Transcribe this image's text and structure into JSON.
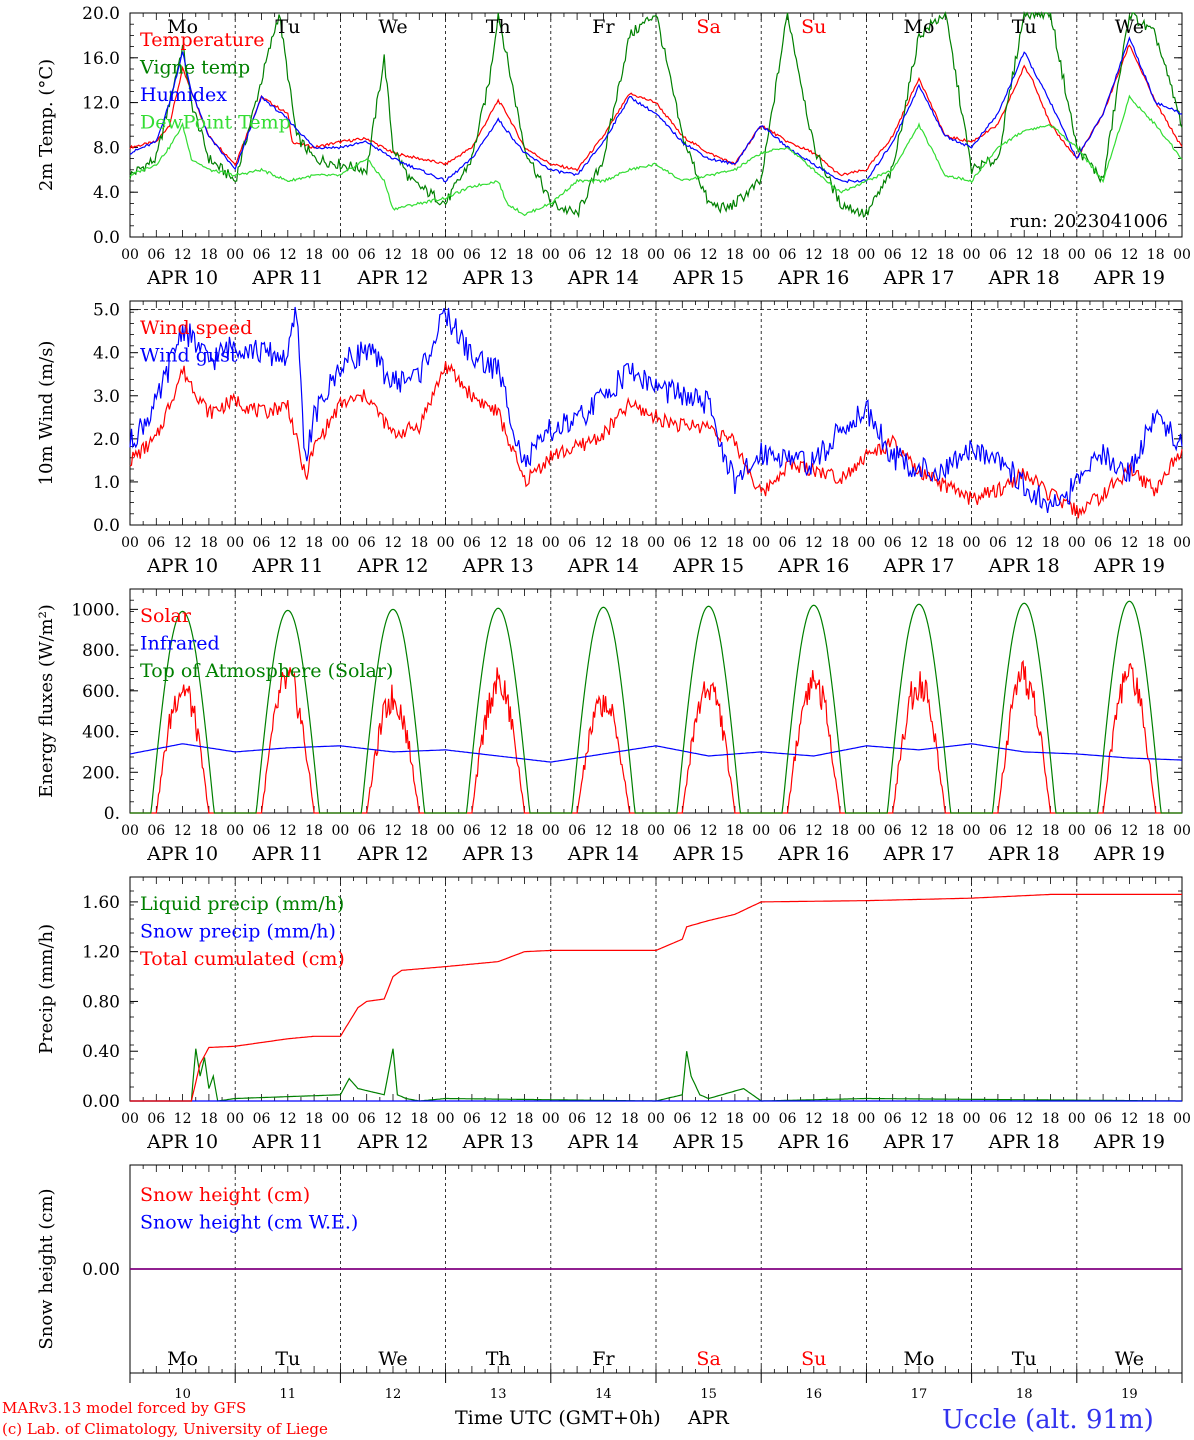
{
  "run_label": "run: 2023041006",
  "footer": {
    "model_line": "MARv3.13 model forced by GFS",
    "credit_line": "(c) Lab. of Climatology, University of Liege",
    "axis_title": "Time UTC (GMT+0h)",
    "month": "APR",
    "station": "Uccle (alt. 91m)"
  },
  "days": [
    {
      "dow": "Mo",
      "date": "APR 10",
      "num": "10",
      "weekend": false
    },
    {
      "dow": "Tu",
      "date": "APR 11",
      "num": "11",
      "weekend": false
    },
    {
      "dow": "We",
      "date": "APR 12",
      "num": "12",
      "weekend": false
    },
    {
      "dow": "Th",
      "date": "APR 13",
      "num": "13",
      "weekend": false
    },
    {
      "dow": "Fr",
      "date": "APR 14",
      "num": "14",
      "weekend": false
    },
    {
      "dow": "Sa",
      "date": "APR 15",
      "num": "15",
      "weekend": true
    },
    {
      "dow": "Su",
      "date": "APR 16",
      "num": "16",
      "weekend": true
    },
    {
      "dow": "Mo",
      "date": "APR 17",
      "num": "17",
      "weekend": false
    },
    {
      "dow": "Tu",
      "date": "APR 18",
      "num": "18",
      "weekend": false
    },
    {
      "dow": "We",
      "date": "APR 19",
      "num": "19",
      "weekend": false
    }
  ],
  "hour_ticks": [
    "00",
    "06",
    "12",
    "18"
  ],
  "colors": {
    "red": "#ff0000",
    "green": "#008000",
    "blue": "#0000ff",
    "lightgreen": "#33dd33",
    "purple": "#800080"
  },
  "chart_data": [
    {
      "id": "temperature",
      "type": "line",
      "ylabel": "2m Temp. (°C)",
      "ylim": [
        0,
        20
      ],
      "yticks": [
        "0.0",
        "4.0",
        "8.0",
        "12.0",
        "16.0",
        "20.0"
      ],
      "x_unit": "hours since 2023-04-10 00 UTC",
      "series": [
        {
          "name": "Temperature",
          "color": "#ff0000",
          "x": [
            0,
            6,
            9,
            12,
            14,
            18,
            24,
            30,
            36,
            37,
            42,
            48,
            54,
            60,
            66,
            72,
            78,
            84,
            86,
            90,
            96,
            102,
            108,
            114,
            120,
            126,
            132,
            138,
            144,
            150,
            156,
            162,
            168,
            174,
            180,
            186,
            192,
            198,
            204,
            206,
            210,
            216,
            222,
            228,
            234,
            240
          ],
          "y": [
            8.0,
            8.5,
            10,
            15.0,
            13,
            9,
            6.5,
            12.5,
            11,
            8.5,
            8,
            8.5,
            8.8,
            7.5,
            7,
            6.5,
            8,
            12.2,
            11,
            8,
            6.5,
            6,
            9,
            12.8,
            12,
            9,
            7.5,
            6.5,
            10,
            8.5,
            7.5,
            5.5,
            6,
            9,
            14.2,
            9,
            8.5,
            10,
            15.2,
            14,
            10,
            7,
            11,
            17.2,
            12,
            8
          ]
        },
        {
          "name": "Vigne temp",
          "color": "#008000",
          "x": [
            0,
            6,
            9,
            12,
            14,
            18,
            24,
            30,
            34,
            38,
            42,
            48,
            54,
            58,
            60,
            64,
            66,
            72,
            78,
            82,
            84,
            90,
            96,
            102,
            108,
            114,
            120,
            126,
            132,
            136,
            138,
            144,
            150,
            156,
            162,
            168,
            174,
            180,
            186,
            192,
            198,
            204,
            210,
            216,
            222,
            228,
            234,
            240
          ],
          "y": [
            5.5,
            7,
            12,
            17,
            12,
            7,
            5,
            14,
            20,
            9,
            7,
            6.5,
            6,
            16,
            8,
            5,
            4.5,
            3,
            7,
            14,
            20,
            8,
            3,
            2,
            7,
            18,
            20,
            9,
            3,
            2.5,
            3,
            5,
            20,
            8,
            3,
            2,
            6,
            18,
            20,
            6,
            7,
            20,
            20,
            8,
            5,
            20,
            18,
            10
          ]
        },
        {
          "name": "Humidex",
          "color": "#0000ff",
          "x": [
            0,
            6,
            9,
            12,
            14,
            18,
            24,
            30,
            36,
            42,
            48,
            54,
            60,
            66,
            72,
            78,
            84,
            90,
            96,
            102,
            108,
            114,
            120,
            126,
            132,
            138,
            144,
            150,
            156,
            162,
            168,
            174,
            180,
            186,
            192,
            198,
            204,
            210,
            216,
            222,
            228,
            234,
            240
          ],
          "y": [
            7.5,
            8.5,
            12,
            16.5,
            13,
            9,
            6,
            12.5,
            10.5,
            8,
            8,
            8.5,
            7,
            6,
            5,
            7,
            10.5,
            7.5,
            6,
            5.5,
            8.5,
            12.5,
            11,
            8.5,
            7,
            6.5,
            10,
            8,
            6.5,
            5,
            5,
            8.5,
            13.5,
            9,
            8,
            11,
            16.5,
            12,
            7,
            11,
            17.8,
            12,
            11
          ]
        },
        {
          "name": "DewPoint Temp",
          "color": "#33dd33",
          "x": [
            0,
            6,
            9,
            12,
            14,
            18,
            24,
            30,
            36,
            42,
            48,
            54,
            58,
            60,
            66,
            72,
            78,
            84,
            86,
            90,
            96,
            102,
            108,
            114,
            120,
            126,
            132,
            138,
            144,
            150,
            156,
            162,
            168,
            174,
            180,
            186,
            192,
            198,
            204,
            210,
            216,
            222,
            228,
            234,
            240
          ],
          "y": [
            5.5,
            6.5,
            8,
            10,
            7,
            6,
            5.5,
            6,
            5,
            5.5,
            5.5,
            7,
            5,
            2.5,
            3,
            3.5,
            4.5,
            5,
            3,
            2,
            3,
            5,
            5,
            6,
            6.5,
            5,
            5.5,
            6,
            7.5,
            8,
            6,
            4,
            5,
            6,
            10,
            5.5,
            5,
            8,
            9.5,
            10,
            8,
            5,
            12.5,
            10,
            7
          ]
        }
      ]
    },
    {
      "id": "wind",
      "type": "line",
      "ylabel": "10m Wind (m/s)",
      "ylim": [
        0,
        5.2
      ],
      "yticks": [
        "0.0",
        "1.0",
        "2.0",
        "3.0",
        "4.0",
        "5.0"
      ],
      "series": [
        {
          "name": "Wind speed",
          "color": "#ff0000",
          "x": [
            0,
            6,
            12,
            18,
            24,
            30,
            36,
            40,
            42,
            48,
            54,
            60,
            66,
            72,
            78,
            84,
            90,
            96,
            102,
            108,
            114,
            120,
            126,
            132,
            138,
            144,
            150,
            156,
            162,
            168,
            174,
            180,
            186,
            192,
            198,
            204,
            210,
            216,
            222,
            228,
            234,
            240
          ],
          "y": [
            1.5,
            2,
            3.6,
            2.6,
            2.9,
            2.6,
            2.8,
            1.1,
            1.8,
            2.8,
            3,
            2.1,
            2.3,
            3.7,
            3,
            2.6,
            1,
            1.6,
            1.8,
            2.1,
            2.8,
            2.5,
            2.3,
            2.3,
            1.9,
            0.7,
            1.4,
            1.3,
            1.1,
            1.6,
            1.9,
            1.2,
            0.9,
            0.6,
            0.8,
            1.2,
            0.7,
            0.3,
            0.7,
            1.3,
            0.8,
            1.8
          ]
        },
        {
          "name": "Wind gust",
          "color": "#0000ff",
          "x": [
            0,
            6,
            12,
            18,
            24,
            30,
            36,
            38,
            40,
            42,
            48,
            54,
            60,
            66,
            72,
            78,
            84,
            90,
            96,
            102,
            108,
            114,
            120,
            126,
            132,
            138,
            144,
            150,
            156,
            162,
            168,
            174,
            180,
            186,
            192,
            198,
            204,
            210,
            216,
            222,
            228,
            234,
            240
          ],
          "y": [
            1.9,
            2.8,
            4.6,
            3.8,
            4.2,
            4,
            3.9,
            5,
            1.5,
            2.5,
            3.7,
            4.1,
            3.3,
            3.5,
            4.9,
            3.9,
            3.6,
            1.4,
            2.2,
            2.4,
            3,
            3.6,
            3.2,
            3,
            2.8,
            0.9,
            1.7,
            1.6,
            1.4,
            2.2,
            2.7,
            1.6,
            1.3,
            1.2,
            1.8,
            1.6,
            0.9,
            0.4,
            0.9,
            1.7,
            1.2,
            2.6,
            1.8
          ]
        }
      ]
    },
    {
      "id": "energy",
      "type": "line",
      "ylabel": "Energy fluxes (W/m²)",
      "ylim": [
        0,
        1100
      ],
      "yticks": [
        "0.",
        "200.",
        "400.",
        "600.",
        "800.",
        "1000."
      ],
      "series": [
        {
          "name": "Solar",
          "color": "#ff0000",
          "daily_peak": [
            700,
            740,
            640,
            720,
            620,
            710,
            740,
            730,
            750,
            780
          ],
          "x_unit": "day index 0-9"
        },
        {
          "name": "Infrared",
          "color": "#0000ff",
          "x": [
            0,
            12,
            24,
            36,
            48,
            60,
            72,
            84,
            96,
            108,
            120,
            132,
            144,
            156,
            168,
            180,
            192,
            204,
            216,
            228,
            240
          ],
          "y": [
            290,
            340,
            300,
            320,
            330,
            300,
            310,
            280,
            250,
            290,
            330,
            280,
            300,
            280,
            330,
            310,
            340,
            300,
            290,
            270,
            260
          ]
        },
        {
          "name": "Top of Atmosphere (Solar)",
          "color": "#008000",
          "daily_peak": [
            990,
            995,
            1000,
            1005,
            1010,
            1015,
            1020,
            1025,
            1030,
            1040
          ],
          "x_unit": "day index 0-9"
        }
      ]
    },
    {
      "id": "precip",
      "type": "line",
      "ylabel": "Precip (mm/h)",
      "ylim": [
        0,
        1.8
      ],
      "yticks": [
        "0.00",
        "0.40",
        "0.80",
        "1.20",
        "1.60"
      ],
      "series": [
        {
          "name": "Liquid precip (mm/h)",
          "color": "#008000",
          "x": [
            0,
            14,
            15,
            16,
            17,
            18,
            19,
            20,
            24,
            48,
            50,
            52,
            58,
            60,
            61,
            63,
            66,
            72,
            120,
            126,
            127,
            128,
            130,
            132,
            140,
            144,
            168,
            240
          ],
          "y": [
            0,
            0,
            0.42,
            0.2,
            0.35,
            0.1,
            0.2,
            0,
            0.02,
            0.05,
            0.18,
            0.1,
            0.05,
            0.42,
            0.05,
            0.02,
            0,
            0.02,
            0,
            0.05,
            0.4,
            0.2,
            0.05,
            0.02,
            0.1,
            0,
            0.02,
            0
          ]
        },
        {
          "name": "Snow precip (mm/h)",
          "color": "#0000ff",
          "x": [
            0,
            240
          ],
          "y": [
            0,
            0
          ]
        },
        {
          "name": "Total cumulated (cm)",
          "color": "#ff0000",
          "x": [
            0,
            14,
            16,
            18,
            24,
            36,
            42,
            48,
            52,
            54,
            58,
            60,
            62,
            72,
            78,
            84,
            90,
            96,
            108,
            120,
            126,
            127,
            132,
            138,
            144,
            168,
            180,
            192,
            198,
            210,
            240
          ],
          "y": [
            0,
            0,
            0.3,
            0.43,
            0.44,
            0.5,
            0.52,
            0.52,
            0.75,
            0.8,
            0.82,
            1.0,
            1.05,
            1.08,
            1.1,
            1.12,
            1.2,
            1.21,
            1.21,
            1.21,
            1.3,
            1.4,
            1.45,
            1.5,
            1.6,
            1.61,
            1.62,
            1.63,
            1.64,
            1.66,
            1.66
          ]
        }
      ]
    },
    {
      "id": "snow",
      "type": "line",
      "ylabel": "Snow height (cm)",
      "yticks": [
        "0.00"
      ],
      "series": [
        {
          "name": "Snow height (cm)",
          "color": "#ff0000",
          "x": [
            0,
            240
          ],
          "y": [
            0,
            0
          ]
        },
        {
          "name": "Snow height (cm W.E.)",
          "color": "#0000ff",
          "x": [
            0,
            240
          ],
          "y": [
            0,
            0
          ]
        }
      ]
    }
  ]
}
